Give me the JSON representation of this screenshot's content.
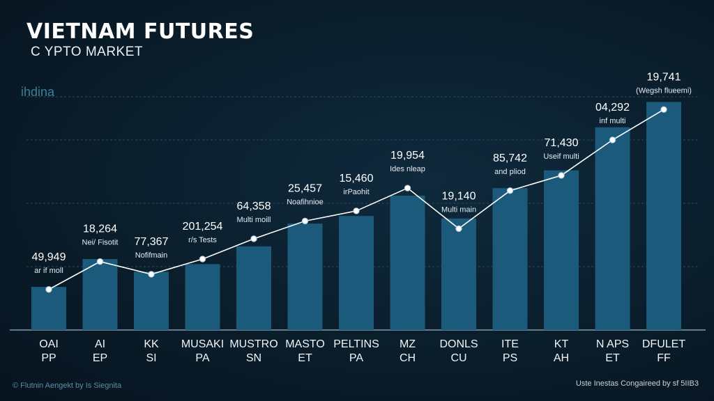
{
  "header": {
    "title": "VIETNAM FUTURES",
    "subtitle": "C YPTO   MARKET",
    "axis_note": "ihdina"
  },
  "footer": {
    "left": "© Flutnin Aengekt by Is Siegnita",
    "right": "Uste Inestas Congaireed by sf 5IIB3"
  },
  "colors": {
    "bar": "#1b5a7b",
    "line": "#ffffff",
    "background": "#0a1d2b"
  },
  "chart_data": {
    "type": "bar",
    "ylim": [
      0,
      100
    ],
    "grid": true,
    "categories": [
      [
        "OAI",
        "PP"
      ],
      [
        "AI",
        "EP"
      ],
      [
        "KK",
        "SI"
      ],
      [
        "MUSAKI",
        "PA"
      ],
      [
        "MUSTRO",
        "SN"
      ],
      [
        "MASTO",
        "ET"
      ],
      [
        "PELTINS",
        "PA"
      ],
      [
        "MZ",
        "CH"
      ],
      [
        "DONLS",
        "CU"
      ],
      [
        "ITE",
        "PS"
      ],
      [
        "KT",
        "AH"
      ],
      [
        "N APS",
        "ET"
      ],
      [
        "DFULET",
        "FF"
      ]
    ],
    "values": [
      17,
      28,
      23,
      26,
      33,
      42,
      45,
      53,
      44,
      56,
      63,
      80,
      90
    ],
    "line_values": [
      16,
      27,
      22,
      28,
      36,
      43,
      47,
      56,
      40,
      55,
      61,
      75,
      87
    ],
    "labels": [
      {
        "value": "49,949",
        "note": "ar if moll"
      },
      {
        "value": "18,264",
        "note": "Nei/ Fisotit"
      },
      {
        "value": "77,367",
        "note": "Nofifmain"
      },
      {
        "value": "201,254",
        "note": "r/s Tests"
      },
      {
        "value": "64,358",
        "note": "Multi moill"
      },
      {
        "value": "25,457",
        "note": "Noafihnioe"
      },
      {
        "value": "15,460",
        "note": "irPaohit"
      },
      {
        "value": "19,954",
        "note": "Ides nleap"
      },
      {
        "value": "19,140",
        "note": "Multi main"
      },
      {
        "value": "85,742",
        "note": "and pliod"
      },
      {
        "value": "71,430",
        "note": "Useif multi"
      },
      {
        "value": "04,292",
        "note": "inf multi"
      },
      {
        "value": "19,741",
        "note": "(Wegsh flueemi)"
      }
    ]
  }
}
